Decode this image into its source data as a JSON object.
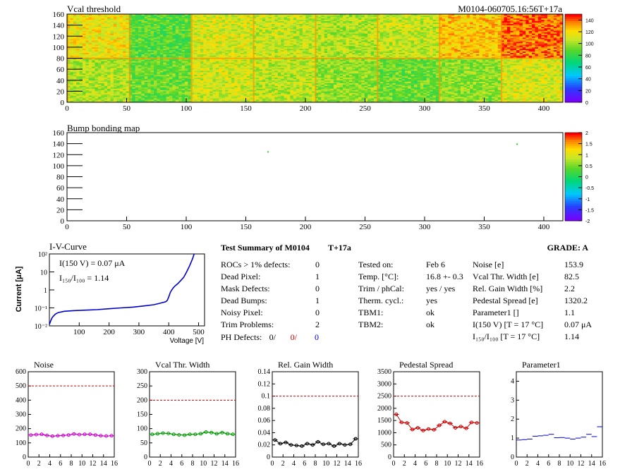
{
  "chart_data": [
    {
      "type": "heatmap",
      "title": "Vcal threshold",
      "subtitle": "M0104-060705.16:56T+17a",
      "xlim": [
        0,
        416
      ],
      "ylim": [
        0,
        160
      ],
      "x_ticks": [
        0,
        50,
        100,
        150,
        200,
        250,
        300,
        350,
        400
      ],
      "y_ticks": [
        0,
        20,
        40,
        60,
        80,
        100,
        120,
        140,
        160
      ],
      "palette_ticks": [
        0,
        20,
        40,
        60,
        80,
        100,
        120,
        140
      ],
      "palette_range": [
        0,
        150
      ],
      "roc_mean_top": [
        118,
        88,
        112,
        108,
        104,
        108,
        126,
        140,
        112,
        92,
        98,
        112,
        86,
        108,
        106,
        112
      ],
      "roc_mean_bottom": [
        104,
        92,
        110,
        106,
        98,
        92,
        98,
        112,
        104,
        94,
        110,
        108,
        92,
        100,
        104,
        108
      ]
    },
    {
      "type": "heatmap",
      "title": "Bump bonding map",
      "xlim": [
        0,
        416
      ],
      "ylim": [
        0,
        160
      ],
      "x_ticks": [
        0,
        50,
        100,
        150,
        200,
        250,
        300,
        350,
        400
      ],
      "y_ticks": [
        0,
        20,
        40,
        60,
        80,
        100,
        120,
        140,
        160
      ],
      "palette_ticks": [
        2,
        1.5,
        1,
        0.5,
        0,
        -0.5,
        -1,
        -1.5,
        -2
      ],
      "palette_range": [
        -2,
        2
      ],
      "points": [
        {
          "x": 168,
          "y": 125
        },
        {
          "x": 377,
          "y": 139
        }
      ]
    },
    {
      "type": "line",
      "title": "I-V-Curve",
      "xlabel": "Voltage [V]",
      "ylabel": "Current [μA]",
      "xlim": [
        0,
        520
      ],
      "ylim": [
        0.01,
        100
      ],
      "y_log": true,
      "x_ticks": [
        100,
        200,
        300,
        400,
        500
      ],
      "y_tick_labels": [
        "10⁻²",
        "10⁻¹",
        "1",
        "10",
        "10²"
      ],
      "annotation_1": "I(150 V) = 0.07 μA",
      "annotation_2": "I₁₅₀/I₁₀₀ = 1.14",
      "x": [
        0,
        5,
        10,
        20,
        30,
        50,
        80,
        120,
        160,
        200,
        240,
        280,
        320,
        350,
        370,
        390,
        395,
        400,
        405,
        410,
        415,
        420,
        430,
        440,
        450,
        460,
        470,
        480,
        485
      ],
      "y": [
        0.012,
        0.02,
        0.03,
        0.045,
        0.055,
        0.065,
        0.07,
        0.075,
        0.08,
        0.09,
        0.1,
        0.11,
        0.13,
        0.15,
        0.18,
        0.22,
        0.26,
        0.4,
        0.7,
        1.0,
        1.3,
        1.6,
        2.2,
        3.3,
        5,
        10,
        22,
        55,
        100
      ]
    },
    {
      "type": "line",
      "title": "Noise",
      "xlim": [
        0,
        16
      ],
      "ylim": [
        0,
        600
      ],
      "x_ticks": [
        0,
        2,
        4,
        6,
        8,
        10,
        12,
        14,
        16
      ],
      "y_ticks": [
        0,
        100,
        200,
        300,
        400,
        500,
        600
      ],
      "limit": 500,
      "color": "#cc00cc",
      "values": [
        155,
        158,
        160,
        152,
        147,
        150,
        152,
        155,
        162,
        158,
        160,
        160,
        155,
        150,
        148,
        150
      ]
    },
    {
      "type": "line",
      "title": "Vcal Thr. Width",
      "xlim": [
        0,
        16
      ],
      "ylim": [
        0,
        300
      ],
      "x_ticks": [
        0,
        2,
        4,
        6,
        8,
        10,
        12,
        14,
        16
      ],
      "y_ticks": [
        0,
        50,
        100,
        150,
        200,
        250,
        300
      ],
      "limit": 200,
      "color": "#009900",
      "values": [
        80,
        82,
        84,
        83,
        80,
        78,
        77,
        80,
        80,
        82,
        88,
        86,
        82,
        86,
        82,
        80
      ]
    },
    {
      "type": "line",
      "title": "Rel. Gain Width",
      "xlim": [
        0,
        16
      ],
      "ylim": [
        0,
        0.14
      ],
      "x_ticks": [
        0,
        2,
        4,
        6,
        8,
        10,
        12,
        14,
        16
      ],
      "y_ticks": [
        0,
        0.02,
        0.04,
        0.06,
        0.08,
        0.1,
        0.12,
        0.14
      ],
      "limit": 0.1,
      "color": "#000000",
      "values": [
        0.028,
        0.022,
        0.024,
        0.02,
        0.019,
        0.018,
        0.022,
        0.02,
        0.025,
        0.021,
        0.022,
        0.018,
        0.022,
        0.02,
        0.021,
        0.03
      ]
    },
    {
      "type": "line",
      "title": "Pedestal Spread",
      "xlim": [
        0,
        16
      ],
      "ylim": [
        0,
        3500
      ],
      "x_ticks": [
        0,
        2,
        4,
        6,
        8,
        10,
        12,
        14,
        16
      ],
      "y_ticks": [
        0,
        500,
        1000,
        1500,
        2000,
        2500,
        3000,
        3500
      ],
      "limit": 2500,
      "color": "#cc0000",
      "values": [
        1750,
        1420,
        1400,
        1130,
        1200,
        1090,
        1150,
        1120,
        1300,
        1450,
        1380,
        1200,
        1250,
        1180,
        1420,
        1400
      ]
    },
    {
      "type": "scatter",
      "title": "Parameter1",
      "xlim": [
        0,
        16
      ],
      "ylim": [
        0,
        4.5
      ],
      "x_ticks": [
        0,
        2,
        4,
        6,
        8,
        10,
        12,
        14,
        16
      ],
      "y_ticks": [
        0,
        1,
        2,
        3,
        4
      ],
      "color": "#0000cc",
      "values": [
        0.9,
        0.92,
        0.95,
        1.1,
        1.12,
        1.15,
        1.2,
        1.02,
        1.03,
        1.0,
        0.95,
        1.0,
        1.05,
        1.2,
        1.08,
        1.6
      ]
    }
  ],
  "summary": {
    "title_line": "Test Summary of M0104",
    "temp_tag": "T+17a",
    "grade": "GRADE:  A",
    "col1": [
      {
        "label": "ROCs > 1% defects:",
        "value": "0"
      },
      {
        "label": "Dead Pixel:",
        "value": "1"
      },
      {
        "label": "Mask Defects:",
        "value": "0"
      },
      {
        "label": "Dead Bumps:",
        "value": "1"
      },
      {
        "label": "Noisy Pixel:",
        "value": "0"
      },
      {
        "label": "Trim Problems:",
        "value": "2"
      }
    ],
    "ph_label": "PH Defects:",
    "ph_values": [
      "0/",
      "0/",
      "0"
    ],
    "ph_colors": [
      "#000000",
      "#cc0000",
      "#0000cc"
    ],
    "col2": [
      {
        "label": "Tested on:",
        "value": "Feb 6"
      },
      {
        "label": "Temp. [°C]:",
        "value": "16.8 +- 0.3"
      },
      {
        "label": "Trim / phCal:",
        "value": "yes / yes"
      },
      {
        "label": "Therm. cycl.:",
        "value": "yes"
      },
      {
        "label": "TBM1:",
        "value": "ok"
      },
      {
        "label": "TBM2:",
        "value": "ok"
      }
    ],
    "col3": [
      {
        "label": "Noise [e]",
        "value": "153.9"
      },
      {
        "label": "Vcal Thr. Width [e]",
        "value": "82.5"
      },
      {
        "label": "Rel. Gain Width [%]",
        "value": "2.2"
      },
      {
        "label": "Pedestal Spread [e]",
        "value": "1320.2"
      },
      {
        "label": "Parameter1 []",
        "value": "1.1"
      },
      {
        "label": "I(150 V)  [T = 17 °C]",
        "value": "0.07 μA"
      },
      {
        "label": "I₁₅₀/I₁₀₀  [T = 17 °C]",
        "value": "1.14"
      }
    ]
  }
}
